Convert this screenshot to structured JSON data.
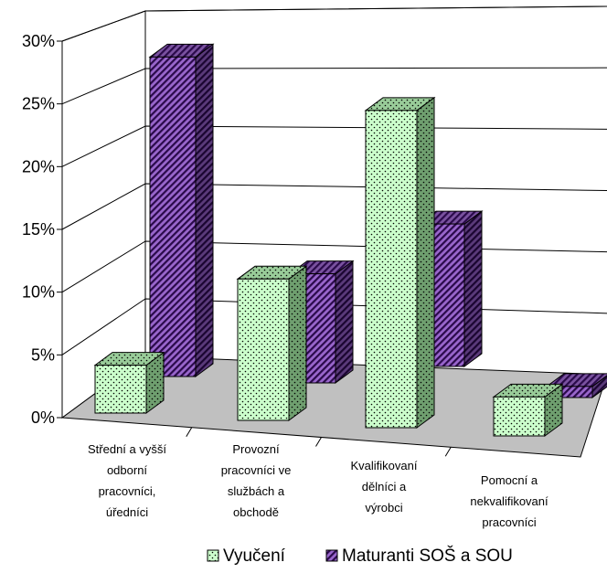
{
  "chart_data": {
    "type": "bar",
    "style": "3d-clustered-column",
    "categories": [
      [
        "Střední a vyšší",
        "odborní",
        "pracovníci,",
        "úředníci"
      ],
      [
        "Provozní",
        "pracovníci ve",
        "službách a",
        "obchodě"
      ],
      [
        "Kvalifikovaní",
        "dělníci a",
        "výrobci"
      ],
      [
        "Pomocní a",
        "nekvalifikovaní",
        "pracovníci"
      ]
    ],
    "series": [
      {
        "name": "Vyučení",
        "values": [
          4.3,
          12.7,
          28.5,
          3.5
        ],
        "color": "#ccffcc",
        "pattern": "dots"
      },
      {
        "name": "Maturanti SOŠ a SOU",
        "values": [
          28.7,
          9.8,
          12.8,
          1.0
        ],
        "color": "#9966cc",
        "pattern": "diagonal-stripes"
      }
    ],
    "yticks": [
      "0%",
      "5%",
      "10%",
      "15%",
      "20%",
      "25%",
      "30%"
    ],
    "ylim": [
      0,
      30
    ],
    "grid": true,
    "legend_position": "bottom"
  }
}
